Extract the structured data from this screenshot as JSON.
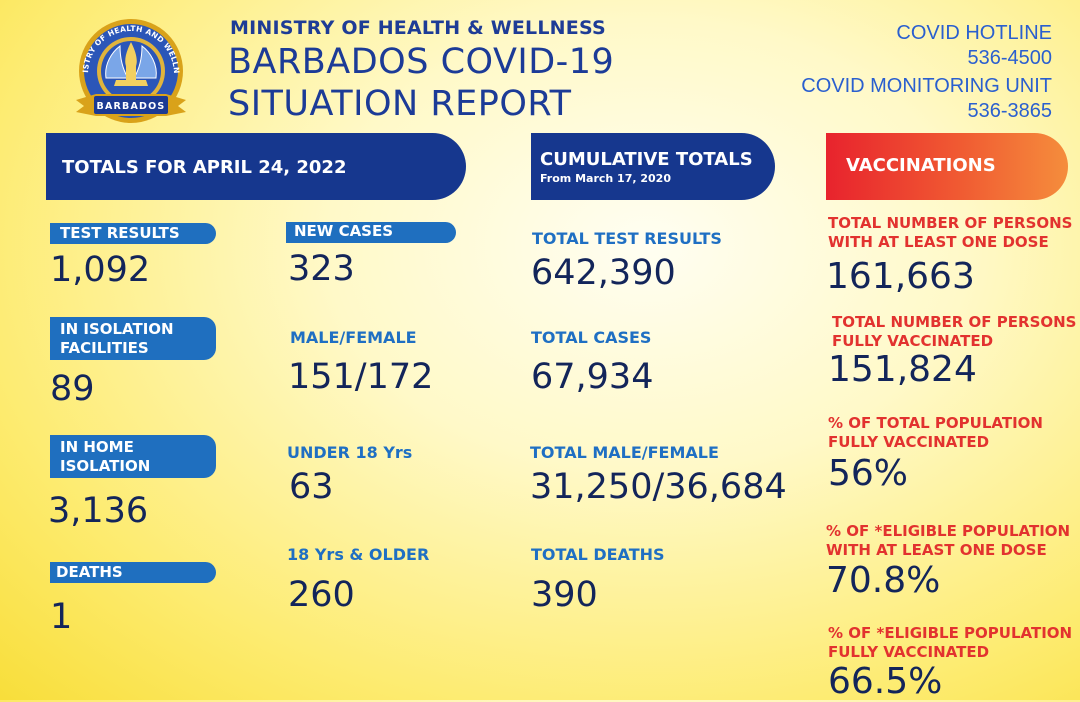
{
  "header": {
    "ministry": "MINISTRY OF HEALTH & WELLNESS",
    "title_line1": "BARBADOS COVID-19",
    "title_line2": "SITUATION REPORT",
    "hotline_label": "COVID HOTLINE",
    "hotline_number": "536-4500",
    "monitoring_label": "COVID MONITORING UNIT",
    "monitoring_number": "536-3865",
    "logo": {
      "ring_text_top": "MINISTRY OF HEALTH AND WELLNESS",
      "ribbon_text": "BARBADOS",
      "icon": "hands-holding-flame-emblem",
      "colors": {
        "gold": "#d9a21a",
        "blue": "#2b56b8",
        "navy": "#1b3a93"
      }
    }
  },
  "totals_day": {
    "banner": "TOTALS FOR APRIL 24, 2022",
    "test_results": {
      "label": "TEST RESULTS",
      "value": "1,092"
    },
    "isolation_facilities": {
      "label_line1": "IN ISOLATION",
      "label_line2": "FACILITIES",
      "value": "89"
    },
    "home_isolation": {
      "label_line1": "IN HOME",
      "label_line2": "ISOLATION",
      "value": "3,136"
    },
    "deaths": {
      "label": "DEATHS",
      "value": "1"
    },
    "new_cases": {
      "label": "NEW CASES",
      "value": "323"
    },
    "male_female": {
      "label": "MALE/FEMALE",
      "value": "151/172"
    },
    "under_18": {
      "label": "UNDER 18 Yrs",
      "value": "63"
    },
    "over_18": {
      "label": "18 Yrs & OLDER",
      "value": "260"
    }
  },
  "cumulative": {
    "banner": "CUMULATIVE TOTALS",
    "banner_sub": "From March 17, 2020",
    "test_results": {
      "label": "TOTAL TEST RESULTS",
      "value": "642,390"
    },
    "cases": {
      "label": "TOTAL CASES",
      "value": "67,934"
    },
    "male_female": {
      "label": "TOTAL MALE/FEMALE",
      "value": "31,250/36,684"
    },
    "deaths": {
      "label": "TOTAL DEATHS",
      "value": "390"
    }
  },
  "vaccinations": {
    "banner": "VACCINATIONS",
    "one_dose": {
      "label_line1": "TOTAL NUMBER OF PERSONS",
      "label_line2": "WITH AT LEAST ONE DOSE",
      "value": "161,663"
    },
    "fully": {
      "label_line1": "TOTAL NUMBER OF PERSONS",
      "label_line2": "FULLY VACCINATED",
      "value": "151,824"
    },
    "pct_total_fully": {
      "label_line1": "% OF TOTAL POPULATION",
      "label_line2": "FULLY VACCINATED",
      "value": "56%"
    },
    "pct_eligible_one": {
      "label_line1": "% OF *ELIGIBLE POPULATION",
      "label_line2": "WITH AT LEAST ONE DOSE",
      "value": "70.8%"
    },
    "pct_eligible_fully": {
      "label_line1": "% OF *ELIGIBLE POPULATION",
      "label_line2": "FULLY VACCINATED",
      "value": "66.5%"
    }
  },
  "colors": {
    "navy": "#16378e",
    "pill_blue": "#1f6fbf",
    "label_blue": "#1f6fc3",
    "label_red": "#e2322f",
    "value_text": "#13255a",
    "vax_gradient_start": "#e8232d",
    "vax_gradient_end": "#f58d3c"
  }
}
